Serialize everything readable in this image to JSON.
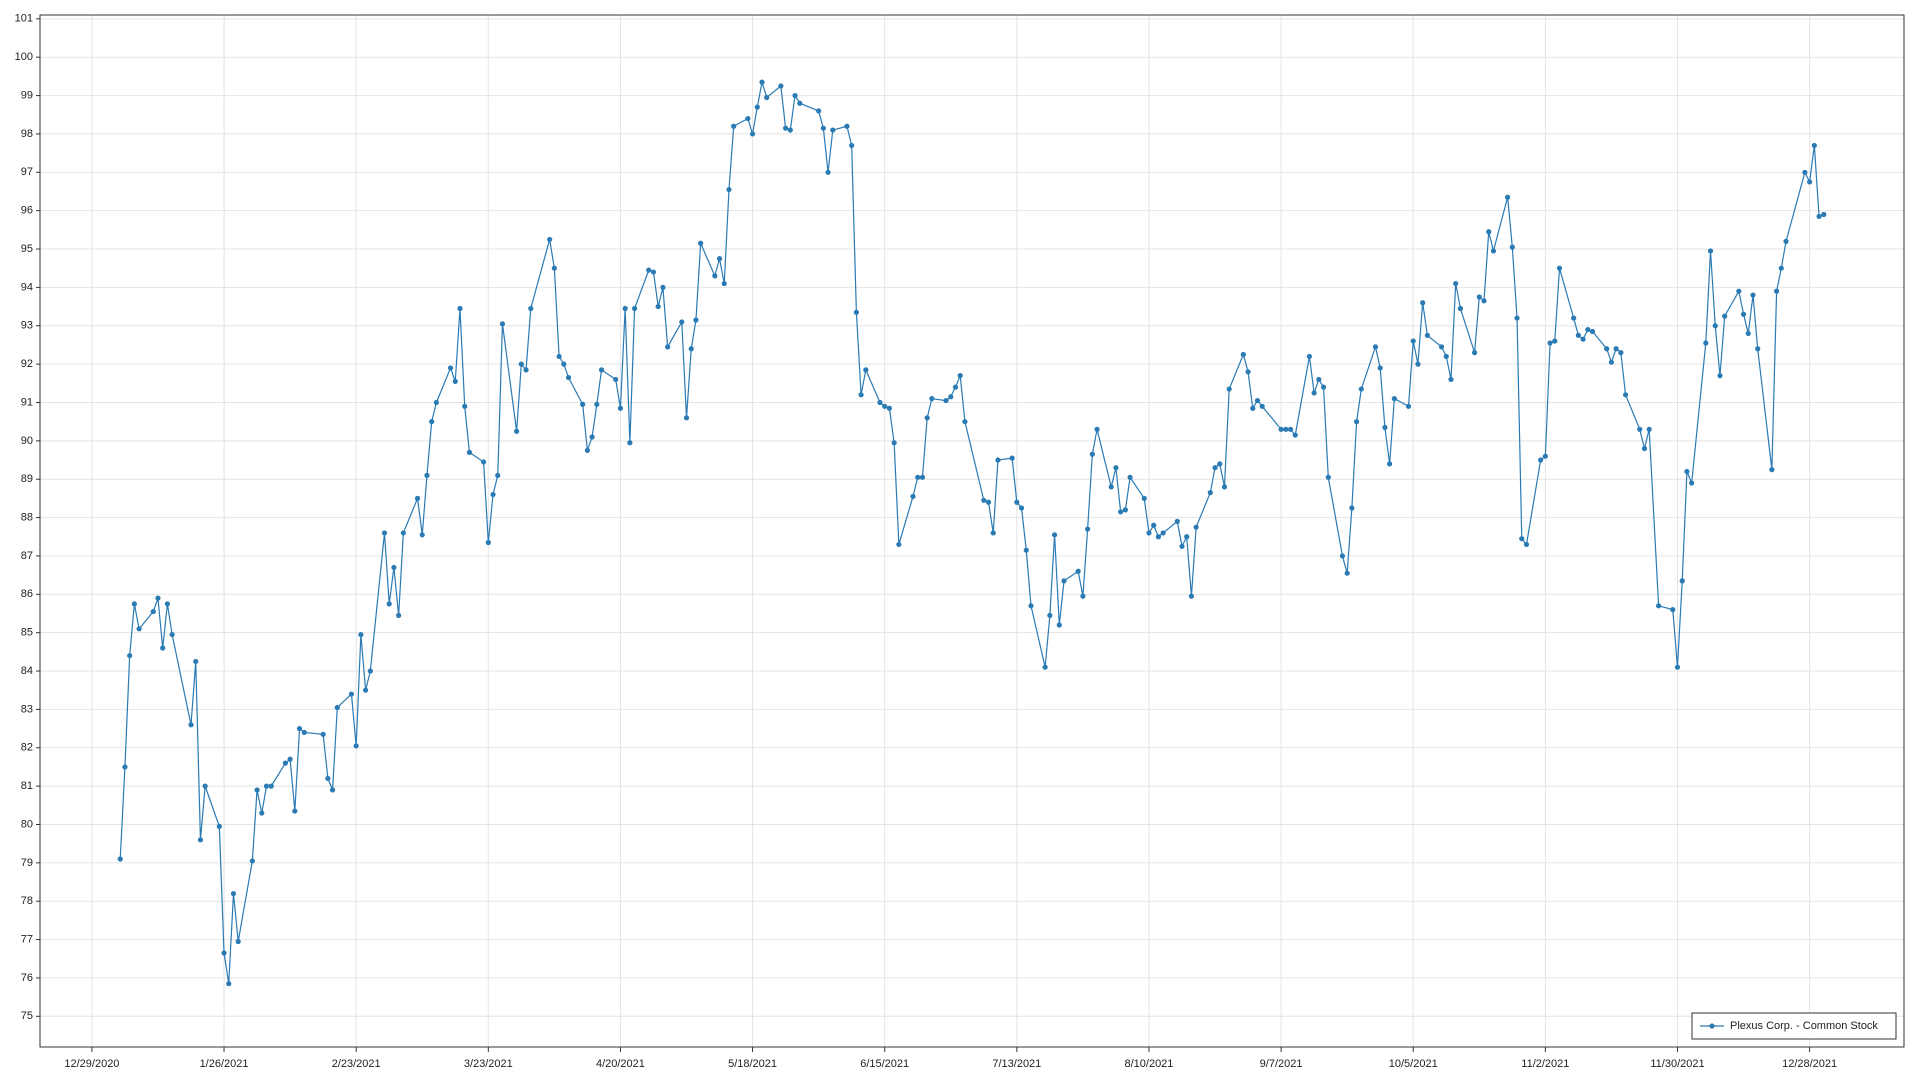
{
  "chart_data": {
    "type": "line",
    "x": [
      "1/4/2021",
      "1/5/2021",
      "1/6/2021",
      "1/7/2021",
      "1/8/2021",
      "1/11/2021",
      "1/12/2021",
      "1/13/2021",
      "1/14/2021",
      "1/15/2021",
      "1/19/2021",
      "1/20/2021",
      "1/21/2021",
      "1/22/2021",
      "1/25/2021",
      "1/26/2021",
      "1/27/2021",
      "1/28/2021",
      "1/29/2021",
      "2/1/2021",
      "2/2/2021",
      "2/3/2021",
      "2/4/2021",
      "2/5/2021",
      "2/8/2021",
      "2/9/2021",
      "2/10/2021",
      "2/11/2021",
      "2/12/2021",
      "2/16/2021",
      "2/17/2021",
      "2/18/2021",
      "2/19/2021",
      "2/22/2021",
      "2/23/2021",
      "2/24/2021",
      "2/25/2021",
      "2/26/2021",
      "3/1/2021",
      "3/2/2021",
      "3/3/2021",
      "3/4/2021",
      "3/5/2021",
      "3/8/2021",
      "3/9/2021",
      "3/10/2021",
      "3/11/2021",
      "3/12/2021",
      "3/15/2021",
      "3/16/2021",
      "3/17/2021",
      "3/18/2021",
      "3/19/2021",
      "3/22/2021",
      "3/23/2021",
      "3/24/2021",
      "3/25/2021",
      "3/26/2021",
      "3/29/2021",
      "3/30/2021",
      "3/31/2021",
      "4/1/2021",
      "4/5/2021",
      "4/6/2021",
      "4/7/2021",
      "4/8/2021",
      "4/9/2021",
      "4/12/2021",
      "4/13/2021",
      "4/14/2021",
      "4/15/2021",
      "4/16/2021",
      "4/19/2021",
      "4/20/2021",
      "4/21/2021",
      "4/22/2021",
      "4/23/2021",
      "4/26/2021",
      "4/27/2021",
      "4/28/2021",
      "4/29/2021",
      "4/30/2021",
      "5/3/2021",
      "5/4/2021",
      "5/5/2021",
      "5/6/2021",
      "5/7/2021",
      "5/10/2021",
      "5/11/2021",
      "5/12/2021",
      "5/13/2021",
      "5/14/2021",
      "5/17/2021",
      "5/18/2021",
      "5/19/2021",
      "5/20/2021",
      "5/21/2021",
      "5/24/2021",
      "5/25/2021",
      "5/26/2021",
      "5/27/2021",
      "5/28/2021",
      "6/1/2021",
      "6/2/2021",
      "6/3/2021",
      "6/4/2021",
      "6/7/2021",
      "6/8/2021",
      "6/9/2021",
      "6/10/2021",
      "6/11/2021",
      "6/14/2021",
      "6/15/2021",
      "6/16/2021",
      "6/17/2021",
      "6/18/2021",
      "6/21/2021",
      "6/22/2021",
      "6/23/2021",
      "6/24/2021",
      "6/25/2021",
      "6/28/2021",
      "6/29/2021",
      "6/30/2021",
      "7/1/2021",
      "7/2/2021",
      "7/6/2021",
      "7/7/2021",
      "7/8/2021",
      "7/9/2021",
      "7/12/2021",
      "7/13/2021",
      "7/14/2021",
      "7/15/2021",
      "7/16/2021",
      "7/19/2021",
      "7/20/2021",
      "7/21/2021",
      "7/22/2021",
      "7/23/2021",
      "7/26/2021",
      "7/27/2021",
      "7/28/2021",
      "7/29/2021",
      "7/30/2021",
      "8/2/2021",
      "8/3/2021",
      "8/4/2021",
      "8/5/2021",
      "8/6/2021",
      "8/9/2021",
      "8/10/2021",
      "8/11/2021",
      "8/12/2021",
      "8/13/2021",
      "8/16/2021",
      "8/17/2021",
      "8/18/2021",
      "8/19/2021",
      "8/20/2021",
      "8/23/2021",
      "8/24/2021",
      "8/25/2021",
      "8/26/2021",
      "8/27/2021",
      "8/30/2021",
      "8/31/2021",
      "9/1/2021",
      "9/2/2021",
      "9/3/2021",
      "9/7/2021",
      "9/8/2021",
      "9/9/2021",
      "9/10/2021",
      "9/13/2021",
      "9/14/2021",
      "9/15/2021",
      "9/16/2021",
      "9/17/2021",
      "9/20/2021",
      "9/21/2021",
      "9/22/2021",
      "9/23/2021",
      "9/24/2021",
      "9/27/2021",
      "9/28/2021",
      "9/29/2021",
      "9/30/2021",
      "10/1/2021",
      "10/4/2021",
      "10/5/2021",
      "10/6/2021",
      "10/7/2021",
      "10/8/2021",
      "10/11/2021",
      "10/12/2021",
      "10/13/2021",
      "10/14/2021",
      "10/15/2021",
      "10/18/2021",
      "10/19/2021",
      "10/20/2021",
      "10/21/2021",
      "10/22/2021",
      "10/25/2021",
      "10/26/2021",
      "10/27/2021",
      "10/28/2021",
      "10/29/2021",
      "11/1/2021",
      "11/2/2021",
      "11/3/2021",
      "11/4/2021",
      "11/5/2021",
      "11/8/2021",
      "11/9/2021",
      "11/10/2021",
      "11/11/2021",
      "11/12/2021",
      "11/15/2021",
      "11/16/2021",
      "11/17/2021",
      "11/18/2021",
      "11/19/2021",
      "11/22/2021",
      "11/23/2021",
      "11/24/2021",
      "11/26/2021",
      "11/29/2021",
      "11/30/2021",
      "12/1/2021",
      "12/2/2021",
      "12/3/2021",
      "12/6/2021",
      "12/7/2021",
      "12/8/2021",
      "12/9/2021",
      "12/10/2021",
      "12/13/2021",
      "12/14/2021",
      "12/15/2021",
      "12/16/2021",
      "12/17/2021",
      "12/20/2021",
      "12/21/2021",
      "12/22/2021",
      "12/23/2021",
      "12/27/2021",
      "12/28/2021",
      "12/29/2021",
      "12/30/2021",
      "12/31/2021"
    ],
    "series": [
      {
        "name": "Plexus Corp. - Common Stock",
        "color": "#2a7ab4",
        "values": [
          79.1,
          81.5,
          84.4,
          85.75,
          85.1,
          85.55,
          85.9,
          84.6,
          85.75,
          84.95,
          82.6,
          84.25,
          79.6,
          81.0,
          79.95,
          76.65,
          75.85,
          78.2,
          76.95,
          79.05,
          80.9,
          80.3,
          81.0,
          81.0,
          81.6,
          81.7,
          80.35,
          82.5,
          82.4,
          82.35,
          81.2,
          80.9,
          83.05,
          83.4,
          82.05,
          84.95,
          83.5,
          84.0,
          87.6,
          85.75,
          86.7,
          85.45,
          87.6,
          88.5,
          87.55,
          89.1,
          90.5,
          91.0,
          91.9,
          91.55,
          93.45,
          90.9,
          89.7,
          89.45,
          87.35,
          88.6,
          89.1,
          93.05,
          90.25,
          92.0,
          91.85,
          93.45,
          95.25,
          94.5,
          92.2,
          92.0,
          91.65,
          90.95,
          89.75,
          90.1,
          90.95,
          91.85,
          91.6,
          90.85,
          93.45,
          89.95,
          93.45,
          94.45,
          94.4,
          93.5,
          94.0,
          92.45,
          93.1,
          90.6,
          92.4,
          93.15,
          95.15,
          94.3,
          94.75,
          94.1,
          96.55,
          98.2,
          98.4,
          98.0,
          98.7,
          99.35,
          98.95,
          99.25,
          98.15,
          98.1,
          99.0,
          98.8,
          98.6,
          98.15,
          97.0,
          98.1,
          98.2,
          97.7,
          93.35,
          91.2,
          91.85,
          91.0,
          90.9,
          90.85,
          89.95,
          87.3,
          88.55,
          89.05,
          89.05,
          90.6,
          91.1,
          91.05,
          91.15,
          91.4,
          91.7,
          90.5,
          88.45,
          88.4,
          87.6,
          89.5,
          89.55,
          88.4,
          88.25,
          87.15,
          85.7,
          84.1,
          85.45,
          87.55,
          85.2,
          86.35,
          86.6,
          85.95,
          87.7,
          89.65,
          90.3,
          88.8,
          89.3,
          88.15,
          88.2,
          89.05,
          88.5,
          87.6,
          87.8,
          87.5,
          87.6,
          87.9,
          87.25,
          87.5,
          85.95,
          87.75,
          88.65,
          89.3,
          89.4,
          88.8,
          91.35,
          92.25,
          91.8,
          90.85,
          91.05,
          90.9,
          90.3,
          90.3,
          90.3,
          90.15,
          92.2,
          91.25,
          91.6,
          91.4,
          89.05,
          87.0,
          86.55,
          88.25,
          90.5,
          91.35,
          92.45,
          91.9,
          90.35,
          89.4,
          91.1,
          90.9,
          92.6,
          92.0,
          93.6,
          92.75,
          92.45,
          92.2,
          91.6,
          94.1,
          93.45,
          92.3,
          93.75,
          93.65,
          95.45,
          94.95,
          96.35,
          95.05,
          93.2,
          87.45,
          87.3,
          89.5,
          89.6,
          92.55,
          92.6,
          94.5,
          93.2,
          92.75,
          92.65,
          92.9,
          92.85,
          92.4,
          92.05,
          92.4,
          92.3,
          91.2,
          90.3,
          89.8,
          90.3,
          85.7,
          85.6,
          84.1,
          86.35,
          89.2,
          88.9,
          92.55,
          94.95,
          93.0,
          91.7,
          93.25,
          93.9,
          93.3,
          92.8,
          93.8,
          92.4,
          89.25,
          93.9,
          94.5,
          95.2,
          97.0,
          96.75,
          97.7,
          95.85,
          95.9
        ]
      }
    ],
    "xlim": [
      "12/18/2020",
      "1/17/2022"
    ],
    "xticks": [
      "12/29/2020",
      "1/26/2021",
      "2/23/2021",
      "3/23/2021",
      "4/20/2021",
      "5/18/2021",
      "6/15/2021",
      "7/13/2021",
      "8/10/2021",
      "9/7/2021",
      "10/5/2021",
      "11/2/2021",
      "11/30/2021",
      "12/28/2021"
    ],
    "ylim": [
      74.2,
      101.1
    ],
    "yticks": [
      75,
      76,
      77,
      78,
      79,
      80,
      81,
      82,
      83,
      84,
      85,
      86,
      87,
      88,
      89,
      90,
      91,
      92,
      93,
      94,
      95,
      96,
      97,
      98,
      99,
      100,
      101
    ],
    "grid": true,
    "legend": "lower right"
  }
}
